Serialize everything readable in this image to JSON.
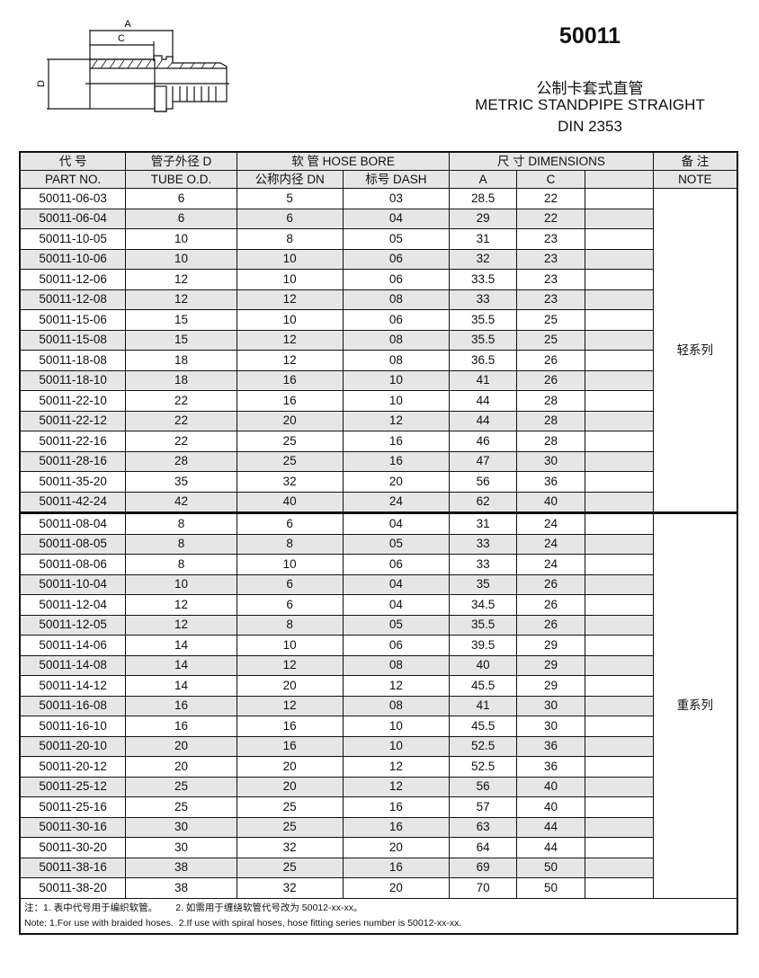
{
  "header": {
    "code": "50011",
    "title_cn": "公制卡套式直管",
    "title_en": "METRIC STANDPIPE STRAIGHT",
    "standard": "DIN 2353"
  },
  "diagram": {
    "labels": {
      "a": "A",
      "c": "C",
      "d": "D"
    }
  },
  "table": {
    "headers": {
      "part_cn": "代 号",
      "part_en": "PART NO.",
      "tube_cn": "管子外径 D",
      "tube_en": "TUBE O.D.",
      "hose": "软 管 HOSE BORE",
      "dn": "公称内径 DN",
      "dash": "标号 DASH",
      "dim": "尺 寸 DIMENSIONS",
      "a": "A",
      "c": "C",
      "note_cn": "备 注",
      "note_en": "NOTE"
    },
    "groups": [
      {
        "note": "轻系列",
        "rows": [
          [
            "50011-06-03",
            "6",
            "5",
            "03",
            "28.5",
            "22"
          ],
          [
            "50011-06-04",
            "6",
            "6",
            "04",
            "29",
            "22"
          ],
          [
            "50011-10-05",
            "10",
            "8",
            "05",
            "31",
            "23"
          ],
          [
            "50011-10-06",
            "10",
            "10",
            "06",
            "32",
            "23"
          ],
          [
            "50011-12-06",
            "12",
            "10",
            "06",
            "33.5",
            "23"
          ],
          [
            "50011-12-08",
            "12",
            "12",
            "08",
            "33",
            "23"
          ],
          [
            "50011-15-06",
            "15",
            "10",
            "06",
            "35.5",
            "25"
          ],
          [
            "50011-15-08",
            "15",
            "12",
            "08",
            "35.5",
            "25"
          ],
          [
            "50011-18-08",
            "18",
            "12",
            "08",
            "36.5",
            "26"
          ],
          [
            "50011-18-10",
            "18",
            "16",
            "10",
            "41",
            "26"
          ],
          [
            "50011-22-10",
            "22",
            "16",
            "10",
            "44",
            "28"
          ],
          [
            "50011-22-12",
            "22",
            "20",
            "12",
            "44",
            "28"
          ],
          [
            "50011-22-16",
            "22",
            "25",
            "16",
            "46",
            "28"
          ],
          [
            "50011-28-16",
            "28",
            "25",
            "16",
            "47",
            "30"
          ],
          [
            "50011-35-20",
            "35",
            "32",
            "20",
            "56",
            "36"
          ],
          [
            "50011-42-24",
            "42",
            "40",
            "24",
            "62",
            "40"
          ]
        ]
      },
      {
        "note": "重系列",
        "rows": [
          [
            "50011-08-04",
            "8",
            "6",
            "04",
            "31",
            "24"
          ],
          [
            "50011-08-05",
            "8",
            "8",
            "05",
            "33",
            "24"
          ],
          [
            "50011-08-06",
            "8",
            "10",
            "06",
            "33",
            "24"
          ],
          [
            "50011-10-04",
            "10",
            "6",
            "04",
            "35",
            "26"
          ],
          [
            "50011-12-04",
            "12",
            "6",
            "04",
            "34.5",
            "26"
          ],
          [
            "50011-12-05",
            "12",
            "8",
            "05",
            "35.5",
            "26"
          ],
          [
            "50011-14-06",
            "14",
            "10",
            "06",
            "39.5",
            "29"
          ],
          [
            "50011-14-08",
            "14",
            "12",
            "08",
            "40",
            "29"
          ],
          [
            "50011-14-12",
            "14",
            "20",
            "12",
            "45.5",
            "29"
          ],
          [
            "50011-16-08",
            "16",
            "12",
            "08",
            "41",
            "30"
          ],
          [
            "50011-16-10",
            "16",
            "16",
            "10",
            "45.5",
            "30"
          ],
          [
            "50011-20-10",
            "20",
            "16",
            "10",
            "52.5",
            "36"
          ],
          [
            "50011-20-12",
            "20",
            "20",
            "12",
            "52.5",
            "36"
          ],
          [
            "50011-25-12",
            "25",
            "20",
            "12",
            "56",
            "40"
          ],
          [
            "50011-25-16",
            "25",
            "25",
            "16",
            "57",
            "40"
          ],
          [
            "50011-30-16",
            "30",
            "25",
            "16",
            "63",
            "44"
          ],
          [
            "50011-30-20",
            "30",
            "32",
            "20",
            "64",
            "44"
          ],
          [
            "50011-38-16",
            "38",
            "25",
            "16",
            "69",
            "50"
          ],
          [
            "50011-38-20",
            "38",
            "32",
            "20",
            "70",
            "50"
          ]
        ]
      }
    ],
    "notes": {
      "cn1": "注：1. 表中代号用于编织软管。",
      "cn2": "2. 如需用于缠绕软管代号改为 50012-xx-xx。",
      "en1": "Note: 1.For use with braided hoses.",
      "en2": "2.If use with spiral hoses, hose fitting series number is 50012-xx-xx."
    }
  }
}
